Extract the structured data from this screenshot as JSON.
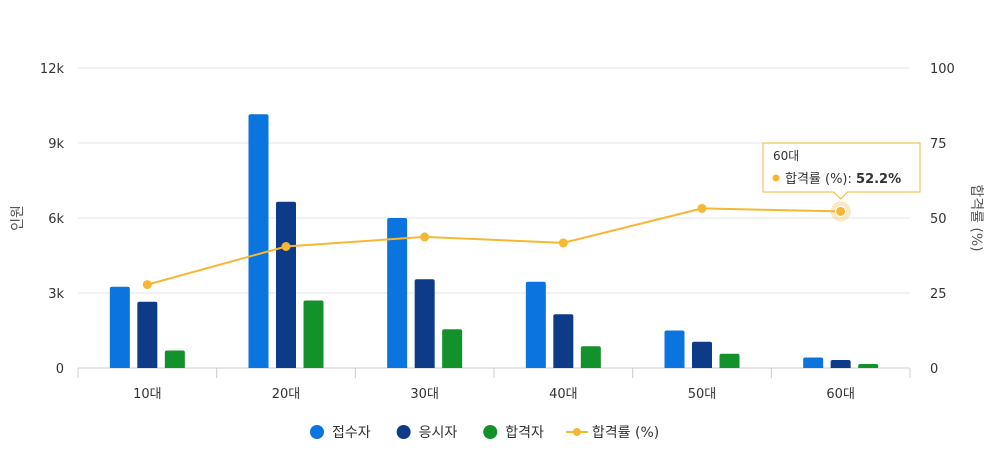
{
  "chart_data": {
    "type": "bar",
    "categories": [
      "10대",
      "20대",
      "30대",
      "40대",
      "50대",
      "60대"
    ],
    "series": [
      {
        "name": "접수자",
        "type": "bar",
        "axis": "left",
        "color": "#0b74de",
        "values": [
          3250,
          10150,
          6000,
          3450,
          1500,
          420
        ]
      },
      {
        "name": "응시자",
        "type": "bar",
        "axis": "left",
        "color": "#0d3b87",
        "values": [
          2650,
          6650,
          3550,
          2150,
          1050,
          320
        ]
      },
      {
        "name": "합격자",
        "type": "bar",
        "axis": "left",
        "color": "#13922b",
        "values": [
          700,
          2700,
          1550,
          870,
          570,
          160
        ]
      },
      {
        "name": "합격률 (%)",
        "type": "line",
        "axis": "right",
        "color": "#f7b733",
        "values": [
          27.8,
          40.5,
          43.7,
          41.7,
          53.2,
          52.2
        ]
      }
    ],
    "y_left": {
      "label": "인원",
      "range": [
        0,
        12000
      ],
      "ticks": [
        "0",
        "3k",
        "6k",
        "9k",
        "12k"
      ]
    },
    "y_right": {
      "label": "합격률 (%)",
      "range": [
        0,
        100
      ],
      "ticks": [
        "0",
        "25",
        "50",
        "75",
        "100"
      ]
    },
    "grid": true,
    "legend_position": "bottom-center",
    "tooltip": {
      "category": "60대",
      "series": "합격률 (%)",
      "label": "합격률 (%): ",
      "value": "52.2%"
    }
  }
}
